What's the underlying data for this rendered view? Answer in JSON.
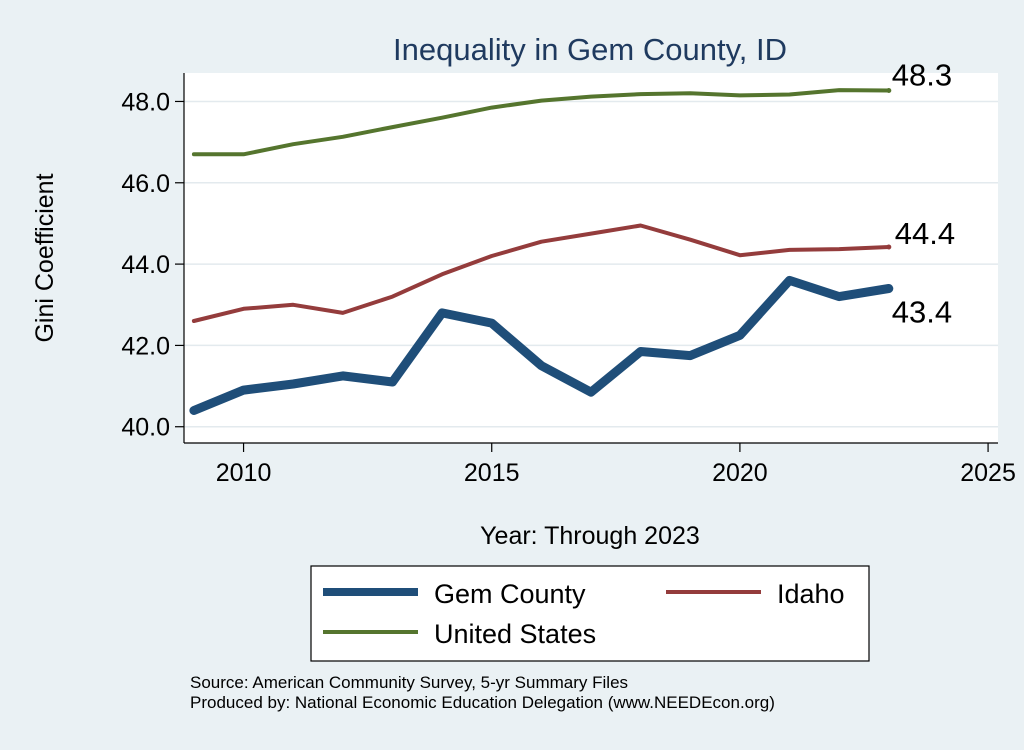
{
  "chart_data": {
    "type": "line",
    "title": "Inequality in Gem County, ID",
    "xlabel": "Year: Through 2023",
    "ylabel": "Gini Coefficient",
    "xlim": [
      2008.8,
      2025.2
    ],
    "ylim": [
      39.6,
      48.7
    ],
    "x_ticks": [
      2010,
      2015,
      2020,
      2025
    ],
    "y_ticks": [
      40.0,
      42.0,
      44.0,
      46.0,
      48.0
    ],
    "y_tick_labels": [
      "40.0",
      "42.0",
      "44.0",
      "46.0",
      "48.0"
    ],
    "grid": "horizontal",
    "legend_position": "bottom",
    "x": [
      2009,
      2010,
      2011,
      2012,
      2013,
      2014,
      2015,
      2016,
      2017,
      2018,
      2019,
      2020,
      2021,
      2022,
      2023
    ],
    "series": [
      {
        "key": "gem",
        "name": "Gem County",
        "color": "#1f4e79",
        "values": [
          40.4,
          40.9,
          41.05,
          41.25,
          41.1,
          42.8,
          42.55,
          41.5,
          40.85,
          41.85,
          41.75,
          42.25,
          43.6,
          43.2,
          43.4
        ],
        "end_label": "43.4"
      },
      {
        "key": "idaho",
        "name": "Idaho",
        "color": "#943c3c",
        "values": [
          42.6,
          42.9,
          43.0,
          42.8,
          43.2,
          43.75,
          44.2,
          44.55,
          44.75,
          44.95,
          44.6,
          44.22,
          44.35,
          44.37,
          44.42
        ],
        "end_label": "44.4"
      },
      {
        "key": "us",
        "name": "United States",
        "color": "#55752e",
        "values": [
          46.7,
          46.7,
          46.95,
          47.13,
          47.37,
          47.6,
          47.85,
          48.02,
          48.12,
          48.18,
          48.2,
          48.15,
          48.17,
          48.28,
          48.27
        ],
        "end_label": "48.3"
      }
    ]
  },
  "source_lines": [
    "Source: American Community Survey, 5-yr Summary Files",
    "Produced by: National Economic Education Delegation (www.NEEDEcon.org)"
  ]
}
